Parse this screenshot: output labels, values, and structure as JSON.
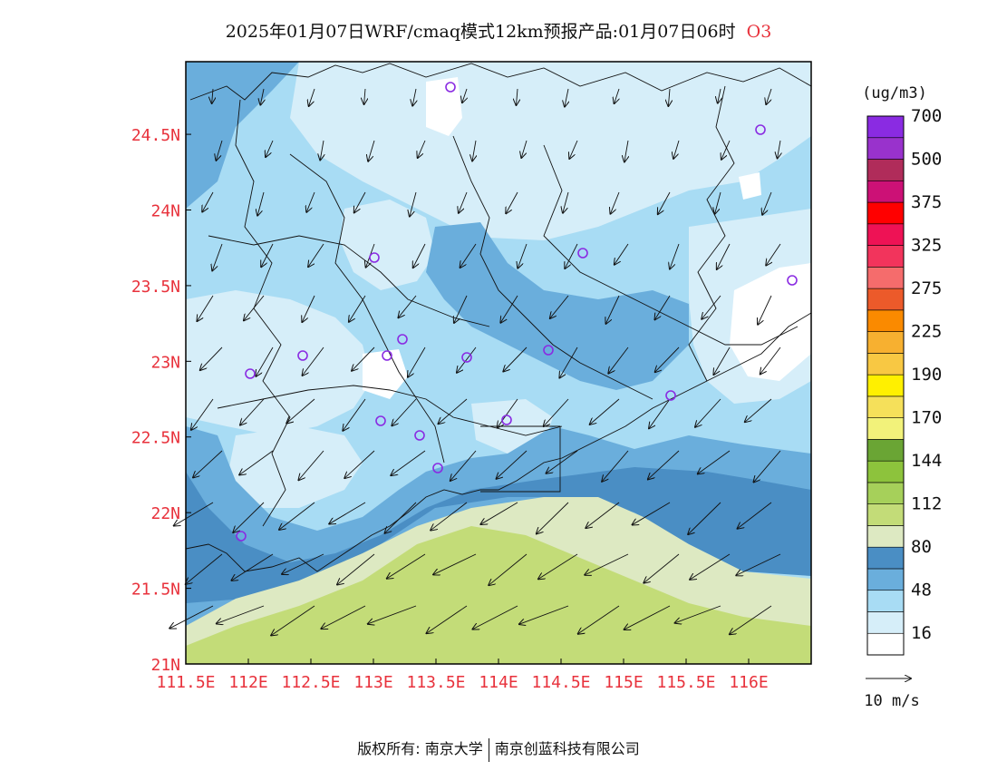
{
  "title": {
    "text": "2025年01月07日WRF/cmaq模式12km预报产品:01月07日06时",
    "variable": "O3"
  },
  "map": {
    "lon_ticks": [
      "111.5E",
      "112E",
      "112.5E",
      "113E",
      "113.5E",
      "114E",
      "114.5E",
      "115E",
      "115.5E",
      "116E"
    ],
    "lat_ticks": [
      "21N",
      "21.5N",
      "22N",
      "22.5N",
      "23N",
      "23.5N",
      "24N",
      "24.5N"
    ],
    "lon_range": [
      111.5,
      116.5
    ],
    "lat_range": [
      21.0,
      24.98
    ],
    "tick_color": "#e8323c",
    "station_color": "#8a2be2"
  },
  "legend": {
    "unit": "(ug/m3)",
    "labels": [
      "16",
      "48",
      "80",
      "112",
      "144",
      "170",
      "190",
      "225",
      "275",
      "325",
      "375",
      "500",
      "700"
    ],
    "colors": [
      "#ffffff",
      "#d6eef9",
      "#a8dcf4",
      "#6aaedc",
      "#4a8ec4",
      "#dde9c2",
      "#c3dc78",
      "#a6d05a",
      "#8dc33c",
      "#6aa534",
      "#f2f27a",
      "#f5e05a",
      "#fff000",
      "#f8c843",
      "#f7b030",
      "#fa8a00",
      "#ec5a2a",
      "#f56c6c",
      "#f2345c",
      "#ee1255",
      "#ff0000",
      "#cc1176",
      "#b02c5a",
      "#9932cc",
      "#8a2be2"
    ]
  },
  "wind_reference": {
    "label": "10 m/s"
  },
  "footer": {
    "copyright": "版权所有: 南京大学",
    "company": "南京创蓝科技有限公司"
  }
}
